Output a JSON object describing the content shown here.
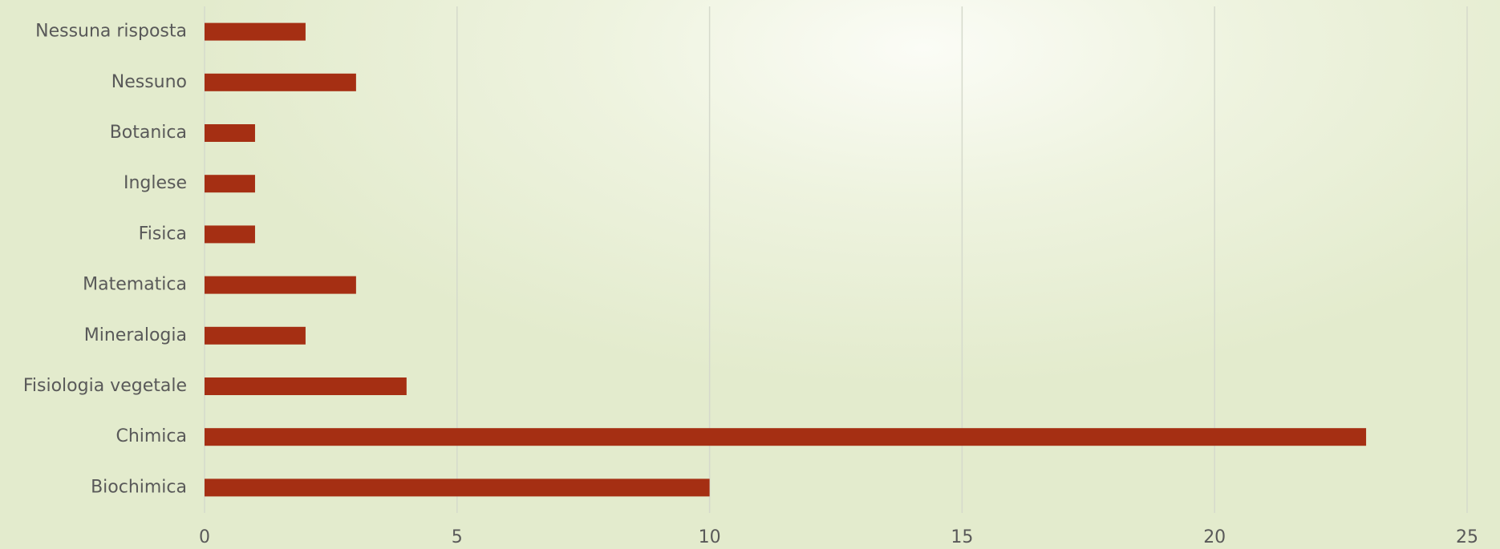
{
  "chart_data": {
    "type": "bar",
    "orientation": "horizontal",
    "categories": [
      "Nessuna risposta",
      "Nessuno",
      "Botanica",
      "Inglese",
      "Fisica",
      "Matematica",
      "Mineralogia",
      "Fisiologia vegetale",
      "Chimica",
      "Biochimica"
    ],
    "values": [
      2,
      3,
      1,
      1,
      1,
      3,
      2,
      4,
      23,
      10
    ],
    "color": "#a52f13",
    "xlim": [
      0,
      25
    ],
    "xticks": [
      0,
      5,
      10,
      15,
      20,
      25
    ],
    "grid": true
  }
}
